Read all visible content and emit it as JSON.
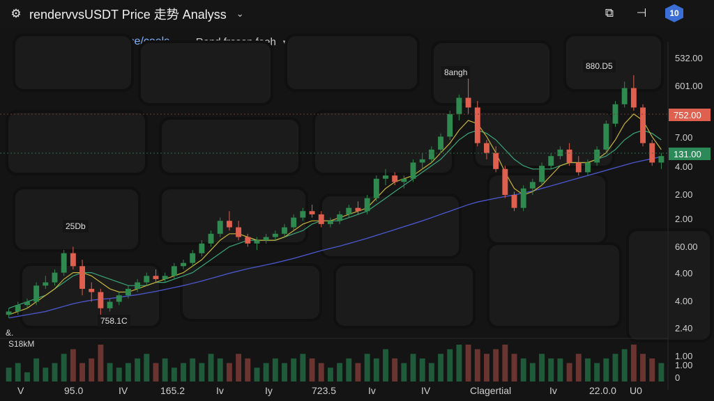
{
  "header": {
    "title": "rendervvsUSDT Price 走势 Analyss",
    "pair_label": "renderv vsUSDT Price/coels",
    "feed_label": "Rend froson feeh"
  },
  "colors": {
    "up": "#2f8a4f",
    "down": "#e06050",
    "ma_fast": "#c8b43c",
    "ma_mid": "#3aa77a",
    "ma_slow": "#4a55c8",
    "accent_badge": "#3b6fd6",
    "price_tag_red": "#e06050",
    "price_tag_green": "#2b8a58"
  },
  "icons": [
    "gear-icon",
    "chevron-down-icon",
    "screenshot-icon",
    "pin-icon",
    "user-badge-icon",
    "plus-icon"
  ],
  "badge_text": "10",
  "annotations": {
    "a1": "25Db",
    "a2": "758.1C",
    "a3": "8angh",
    "a4": "880.D5",
    "sub": "&.",
    "volume": "S18kM"
  },
  "chart_data": {
    "type": "candlestick",
    "title": "",
    "y_axis_labels": [
      "532.00",
      "601.00",
      "7.00",
      "4.00",
      "2.00",
      "2.00",
      "60.00",
      "4.00",
      "4.00",
      "2.40"
    ],
    "price_tags": [
      {
        "label": "752.00",
        "color": "red"
      },
      {
        "label": "131.00",
        "color": "green"
      }
    ],
    "volume_axis_labels": [
      "1.00",
      "1.00",
      "0"
    ],
    "x_axis_labels": [
      "V",
      "95.0",
      "IV",
      "165.2",
      "Iv",
      "Iy",
      "723.5",
      "Iv",
      "IV",
      "Clagertial",
      "Iv",
      "22.0.0",
      "U0"
    ],
    "candles": [
      [
        2.6,
        2.8,
        2.5,
        2.7
      ],
      [
        2.7,
        3.0,
        2.6,
        2.9
      ],
      [
        2.9,
        3.1,
        2.8,
        3.0
      ],
      [
        3.0,
        3.6,
        2.9,
        3.5
      ],
      [
        3.5,
        3.8,
        3.4,
        3.6
      ],
      [
        3.6,
        4.0,
        3.5,
        3.9
      ],
      [
        3.9,
        4.6,
        3.8,
        4.5
      ],
      [
        4.5,
        4.7,
        4.0,
        4.1
      ],
      [
        4.1,
        4.3,
        3.2,
        3.4
      ],
      [
        3.4,
        3.6,
        3.0,
        3.3
      ],
      [
        3.3,
        3.4,
        2.6,
        2.8
      ],
      [
        2.8,
        3.1,
        2.7,
        3.0
      ],
      [
        3.0,
        3.3,
        2.9,
        3.2
      ],
      [
        3.2,
        3.5,
        3.1,
        3.4
      ],
      [
        3.4,
        3.7,
        3.3,
        3.6
      ],
      [
        3.6,
        3.9,
        3.5,
        3.8
      ],
      [
        3.8,
        4.0,
        3.6,
        3.7
      ],
      [
        3.7,
        3.9,
        3.6,
        3.8
      ],
      [
        3.8,
        4.2,
        3.7,
        4.1
      ],
      [
        4.1,
        4.3,
        4.0,
        4.2
      ],
      [
        4.2,
        4.6,
        4.1,
        4.5
      ],
      [
        4.5,
        4.9,
        4.4,
        4.8
      ],
      [
        4.8,
        5.2,
        4.7,
        5.1
      ],
      [
        5.1,
        5.6,
        5.0,
        5.5
      ],
      [
        5.5,
        5.8,
        5.2,
        5.3
      ],
      [
        5.3,
        5.5,
        4.9,
        5.0
      ],
      [
        5.0,
        5.1,
        4.7,
        4.8
      ],
      [
        4.8,
        5.0,
        4.6,
        4.9
      ],
      [
        4.9,
        5.1,
        4.8,
        5.0
      ],
      [
        5.0,
        5.2,
        4.9,
        5.1
      ],
      [
        5.1,
        5.4,
        5.0,
        5.3
      ],
      [
        5.3,
        5.7,
        5.2,
        5.6
      ],
      [
        5.6,
        5.9,
        5.5,
        5.8
      ],
      [
        5.8,
        6.0,
        5.6,
        5.7
      ],
      [
        5.7,
        5.8,
        5.3,
        5.4
      ],
      [
        5.4,
        5.6,
        5.3,
        5.5
      ],
      [
        5.5,
        5.8,
        5.4,
        5.7
      ],
      [
        5.7,
        6.0,
        5.6,
        5.9
      ],
      [
        5.9,
        6.1,
        5.7,
        5.8
      ],
      [
        5.8,
        6.3,
        5.7,
        6.2
      ],
      [
        6.2,
        6.9,
        6.1,
        6.8
      ],
      [
        6.8,
        7.1,
        6.6,
        6.9
      ],
      [
        6.9,
        7.0,
        6.6,
        6.7
      ],
      [
        6.7,
        6.9,
        6.5,
        6.8
      ],
      [
        6.8,
        7.4,
        6.7,
        7.3
      ],
      [
        7.3,
        7.6,
        7.1,
        7.4
      ],
      [
        7.4,
        7.8,
        7.3,
        7.7
      ],
      [
        7.7,
        8.2,
        7.6,
        8.1
      ],
      [
        8.1,
        8.9,
        8.0,
        8.8
      ],
      [
        8.8,
        9.4,
        8.6,
        9.3
      ],
      [
        9.3,
        9.9,
        8.8,
        9.0
      ],
      [
        9.0,
        9.2,
        7.8,
        7.9
      ],
      [
        7.9,
        8.0,
        7.4,
        7.6
      ],
      [
        7.6,
        7.8,
        7.0,
        7.1
      ],
      [
        7.1,
        7.2,
        6.2,
        6.3
      ],
      [
        6.3,
        6.4,
        5.8,
        5.9
      ],
      [
        5.9,
        6.6,
        5.8,
        6.5
      ],
      [
        6.5,
        6.8,
        6.3,
        6.7
      ],
      [
        6.7,
        7.3,
        6.6,
        7.2
      ],
      [
        7.2,
        7.6,
        7.1,
        7.5
      ],
      [
        7.5,
        7.8,
        7.4,
        7.7
      ],
      [
        7.7,
        7.9,
        7.2,
        7.3
      ],
      [
        7.3,
        7.5,
        6.9,
        7.0
      ],
      [
        7.0,
        7.4,
        6.9,
        7.3
      ],
      [
        7.3,
        7.8,
        7.2,
        7.7
      ],
      [
        7.7,
        8.6,
        7.6,
        8.5
      ],
      [
        8.5,
        9.2,
        8.4,
        9.1
      ],
      [
        9.1,
        9.8,
        9.0,
        9.6
      ],
      [
        9.6,
        10.0,
        8.9,
        9.0
      ],
      [
        9.0,
        9.1,
        7.8,
        7.9
      ],
      [
        7.9,
        8.0,
        7.2,
        7.3
      ],
      [
        7.3,
        7.6,
        7.1,
        7.5
      ]
    ],
    "ma_fast": [
      2.6,
      2.7,
      2.8,
      3.0,
      3.2,
      3.4,
      3.7,
      3.9,
      3.9,
      3.8,
      3.6,
      3.4,
      3.3,
      3.3,
      3.4,
      3.5,
      3.6,
      3.7,
      3.8,
      3.9,
      4.1,
      4.3,
      4.6,
      4.9,
      5.1,
      5.1,
      5.0,
      4.9,
      4.9,
      4.9,
      5.0,
      5.2,
      5.4,
      5.5,
      5.5,
      5.5,
      5.6,
      5.7,
      5.8,
      5.9,
      6.2,
      6.5,
      6.7,
      6.8,
      6.9,
      7.1,
      7.3,
      7.6,
      7.9,
      8.3,
      8.6,
      8.5,
      8.1,
      7.6,
      7.0,
      6.5,
      6.3,
      6.4,
      6.6,
      6.9,
      7.2,
      7.3,
      7.3,
      7.3,
      7.4,
      7.6,
      8.0,
      8.5,
      8.8,
      8.6,
      8.1,
      7.7
    ],
    "ma_mid": [
      2.8,
      2.9,
      3.0,
      3.1,
      3.2,
      3.4,
      3.6,
      3.8,
      3.9,
      3.9,
      3.8,
      3.7,
      3.6,
      3.5,
      3.5,
      3.5,
      3.6,
      3.6,
      3.7,
      3.8,
      3.9,
      4.1,
      4.3,
      4.5,
      4.7,
      4.8,
      4.9,
      4.9,
      4.9,
      4.9,
      5.0,
      5.1,
      5.2,
      5.4,
      5.5,
      5.5,
      5.5,
      5.6,
      5.7,
      5.8,
      6.0,
      6.2,
      6.4,
      6.6,
      6.8,
      7.0,
      7.2,
      7.4,
      7.7,
      8.0,
      8.2,
      8.3,
      8.2,
      8.0,
      7.7,
      7.4,
      7.2,
      7.1,
      7.1,
      7.1,
      7.2,
      7.3,
      7.3,
      7.3,
      7.4,
      7.5,
      7.7,
      8.0,
      8.2,
      8.3,
      8.2,
      8.0
    ],
    "ma_slow": [
      2.5,
      2.55,
      2.6,
      2.65,
      2.7,
      2.78,
      2.86,
      2.94,
      3.0,
      3.05,
      3.08,
      3.1,
      3.14,
      3.18,
      3.22,
      3.27,
      3.32,
      3.38,
      3.44,
      3.5,
      3.57,
      3.64,
      3.72,
      3.8,
      3.88,
      3.95,
      4.02,
      4.08,
      4.14,
      4.2,
      4.27,
      4.34,
      4.42,
      4.5,
      4.58,
      4.65,
      4.72,
      4.8,
      4.88,
      4.96,
      5.05,
      5.14,
      5.23,
      5.32,
      5.41,
      5.5,
      5.6,
      5.7,
      5.8,
      5.9,
      6.0,
      6.08,
      6.14,
      6.2,
      6.25,
      6.3,
      6.36,
      6.42,
      6.5,
      6.58,
      6.66,
      6.74,
      6.82,
      6.9,
      6.98,
      7.06,
      7.14,
      7.22,
      7.3,
      7.36,
      7.42,
      7.48
    ],
    "volume": [
      3,
      4,
      2,
      5,
      3,
      4,
      6,
      7,
      4,
      5,
      8,
      4,
      3,
      4,
      5,
      6,
      4,
      5,
      3,
      4,
      5,
      4,
      6,
      5,
      4,
      6,
      5,
      3,
      4,
      5,
      4,
      5,
      6,
      5,
      4,
      3,
      4,
      5,
      4,
      6,
      5,
      7,
      5,
      4,
      6,
      5,
      4,
      6,
      7,
      8,
      8,
      7,
      6,
      7,
      8,
      6,
      5,
      4,
      6,
      5,
      5,
      4,
      6,
      5,
      4,
      5,
      6,
      7,
      8,
      6,
      5,
      4
    ]
  }
}
